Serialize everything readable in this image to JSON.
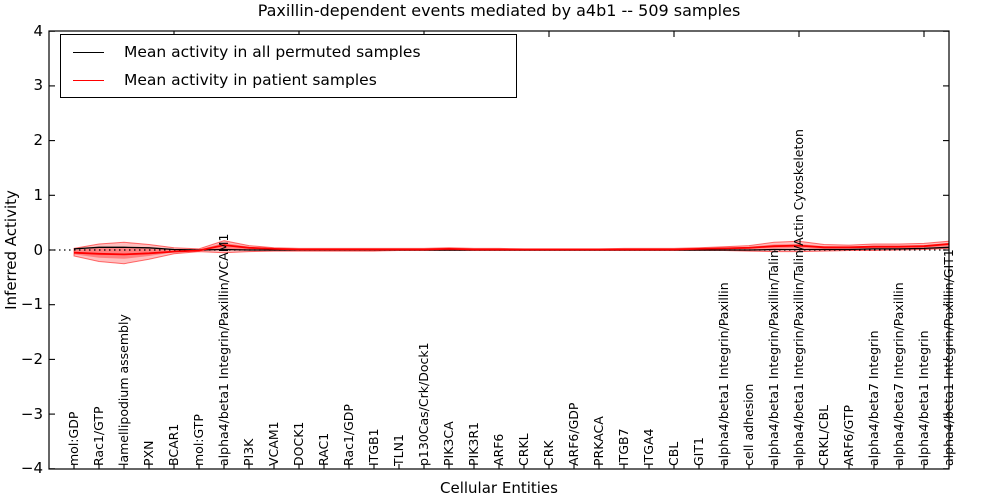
{
  "title": "Paxillin-dependent events mediated by a4b1 -- 509 samples",
  "legend": {
    "items": [
      {
        "label": "Mean activity in all permuted samples",
        "color": "#000000"
      },
      {
        "label": "Mean activity in patient samples",
        "color": "#ff0000"
      }
    ]
  },
  "axes": {
    "ylabel": "Inferred Activity",
    "xlabel": "Cellular Entities",
    "yticks": [
      "4",
      "3",
      "2",
      "1",
      "0",
      "−1",
      "−2",
      "−3",
      "−4"
    ],
    "ytick_values": [
      4,
      3,
      2,
      1,
      0,
      -1,
      -2,
      -3,
      -4
    ]
  },
  "chart_data": {
    "type": "area",
    "title": "Paxillin-dependent events mediated by a4b1 -- 509 samples",
    "xlabel": "Cellular Entities",
    "ylabel": "Inferred Activity",
    "ylim": [
      -4,
      4
    ],
    "grid": false,
    "legend_position": "upper left",
    "zero_reference_line": 0,
    "categories": [
      "mol:GDP",
      "Rac1/GTP",
      "lamellipodium assembly",
      "PXN",
      "BCAR1",
      "mol:GTP",
      "alpha4/beta1 Integrin/Paxillin/VCAM1",
      "PI3K",
      "VCAM1",
      "DOCK1",
      "RAC1",
      "Rac1/GDP",
      "ITGB1",
      "TLN1",
      "p130Cas/Crk/Dock1",
      "PIK3CA",
      "PIK3R1",
      "ARF6",
      "CRKL",
      "CRK",
      "ARF6/GDP",
      "PRKACA",
      "ITGB7",
      "ITGA4",
      "CBL",
      "GIT1",
      "alpha4/beta1 Integrin/Paxillin",
      "cell adhesion",
      "alpha4/beta1 Integrin/Paxillin/Talin",
      "alpha4/beta1 Integrin/Paxillin/Talin/Actin Cytoskeleton",
      "CRKL/CBL",
      "ARF6/GTP",
      "alpha4/beta7 Integrin",
      "alpha4/beta7 Integrin/Paxillin",
      "alpha4/beta1 Integrin",
      "alpha4/beta1 Integrin/Paxillin/GIT1"
    ],
    "series": [
      {
        "name": "Mean activity in all permuted samples",
        "color": "#000000",
        "width": 1.3,
        "values": [
          0.02,
          0.05,
          0.05,
          0.04,
          0.01,
          0,
          0.01,
          0,
          0,
          0,
          0,
          0,
          0,
          0,
          0,
          0,
          0,
          0,
          0,
          0,
          0,
          0,
          0,
          0,
          0,
          0,
          0,
          0,
          0.01,
          0.01,
          0.01,
          0.01,
          0.02,
          0.02,
          0.03,
          0.05
        ]
      },
      {
        "name": "Mean activity in patient samples",
        "color": "#ff0000",
        "width": 1.8,
        "values": [
          -0.05,
          -0.07,
          -0.08,
          -0.06,
          -0.03,
          -0.01,
          0.09,
          0.04,
          0.02,
          0.01,
          0.01,
          0.01,
          0.01,
          0.01,
          0.01,
          0.02,
          0.01,
          0.01,
          0.01,
          0.01,
          0.01,
          0.01,
          0.01,
          0.01,
          0.01,
          0.02,
          0.03,
          0.04,
          0.07,
          0.08,
          0.05,
          0.05,
          0.06,
          0.06,
          0.07,
          0.11
        ]
      }
    ],
    "bands": [
      {
        "name": "patient-activity-outer-band",
        "fill": "rgba(255,0,0,0.25)",
        "stroke": "rgba(255,0,0,0.55)",
        "upper": [
          0.03,
          0.11,
          0.14,
          0.1,
          0.04,
          0.02,
          0.17,
          0.08,
          0.04,
          0.03,
          0.03,
          0.03,
          0.03,
          0.03,
          0.03,
          0.04,
          0.03,
          0.03,
          0.02,
          0.02,
          0.02,
          0.02,
          0.03,
          0.03,
          0.03,
          0.04,
          0.06,
          0.08,
          0.14,
          0.16,
          0.1,
          0.09,
          0.11,
          0.11,
          0.12,
          0.16
        ],
        "lower": [
          -0.11,
          -0.21,
          -0.25,
          -0.17,
          -0.07,
          -0.03,
          -0.05,
          -0.03,
          -0.02,
          -0.02,
          -0.02,
          -0.02,
          -0.02,
          -0.01,
          -0.01,
          -0.01,
          -0.01,
          -0.01,
          -0.01,
          -0.01,
          -0.01,
          -0.01,
          -0.01,
          -0.01,
          -0.01,
          -0.01,
          -0.01,
          -0.02,
          -0.03,
          -0.03,
          -0.02,
          -0.01,
          -0.01,
          0.0,
          0.01,
          0.03
        ]
      },
      {
        "name": "patient-activity-inner-band",
        "fill": "rgba(255,0,0,0.32)",
        "stroke": "none",
        "upper": [
          0.0,
          0.04,
          0.05,
          0.03,
          0.01,
          0.01,
          0.13,
          0.06,
          0.03,
          0.02,
          0.02,
          0.02,
          0.02,
          0.02,
          0.02,
          0.03,
          0.02,
          0.02,
          0.01,
          0.01,
          0.01,
          0.01,
          0.02,
          0.02,
          0.02,
          0.03,
          0.04,
          0.06,
          0.1,
          0.11,
          0.07,
          0.06,
          0.08,
          0.08,
          0.09,
          0.13
        ],
        "lower": [
          -0.08,
          -0.14,
          -0.16,
          -0.11,
          -0.04,
          -0.02,
          0.01,
          0.0,
          0.0,
          0.0,
          0.0,
          0.0,
          0.0,
          0.0,
          0.0,
          0.01,
          0.0,
          0.0,
          0.0,
          0.0,
          0.0,
          0.0,
          0.0,
          0.0,
          0.0,
          0.01,
          0.01,
          0.02,
          0.03,
          0.04,
          0.02,
          0.02,
          0.03,
          0.03,
          0.04,
          0.07
        ]
      }
    ]
  }
}
